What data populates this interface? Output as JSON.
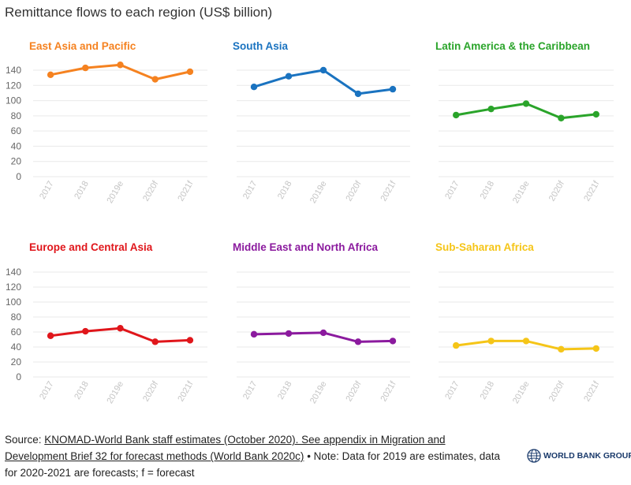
{
  "title": "Remittance flows to each region (US$ billion)",
  "chart_data": {
    "type": "line",
    "layout": "small-multiples",
    "categories": [
      "2017",
      "2018",
      "2019e",
      "2020f",
      "2021f"
    ],
    "ylim": [
      0,
      140
    ],
    "yticks": [
      0,
      20,
      40,
      60,
      80,
      100,
      120,
      140
    ],
    "grid": true,
    "panels": [
      {
        "name": "East Asia and Pacific",
        "color": "#f58220",
        "values": [
          134,
          143,
          147,
          128,
          138
        ]
      },
      {
        "name": "South Asia",
        "color": "#1a73c0",
        "values": [
          118,
          132,
          140,
          109,
          115
        ]
      },
      {
        "name": "Latin America & the Caribbean",
        "color": "#2aa42a",
        "values": [
          81,
          89,
          96,
          77,
          82
        ]
      },
      {
        "name": "Europe and Central Asia",
        "color": "#e0161b",
        "values": [
          55,
          61,
          65,
          47,
          49
        ]
      },
      {
        "name": "Middle East and North Africa",
        "color": "#8b1a9e",
        "values": [
          57,
          58,
          59,
          47,
          48
        ]
      },
      {
        "name": "Sub-Saharan Africa",
        "color": "#f5c518",
        "values": [
          42,
          48,
          48,
          37,
          38
        ]
      }
    ]
  },
  "footer": {
    "source_prefix": "Source: ",
    "source_link": "KNOMAD-World Bank staff estimates (October 2020). See appendix in Migration and Development Brief 32 for forecast methods (World Bank 2020c)",
    "note": " • Note: Data for 2019 are estimates, data for 2020-2021 are forecasts; f = forecast"
  },
  "logo": {
    "text": "WORLD BANK GROUP"
  }
}
